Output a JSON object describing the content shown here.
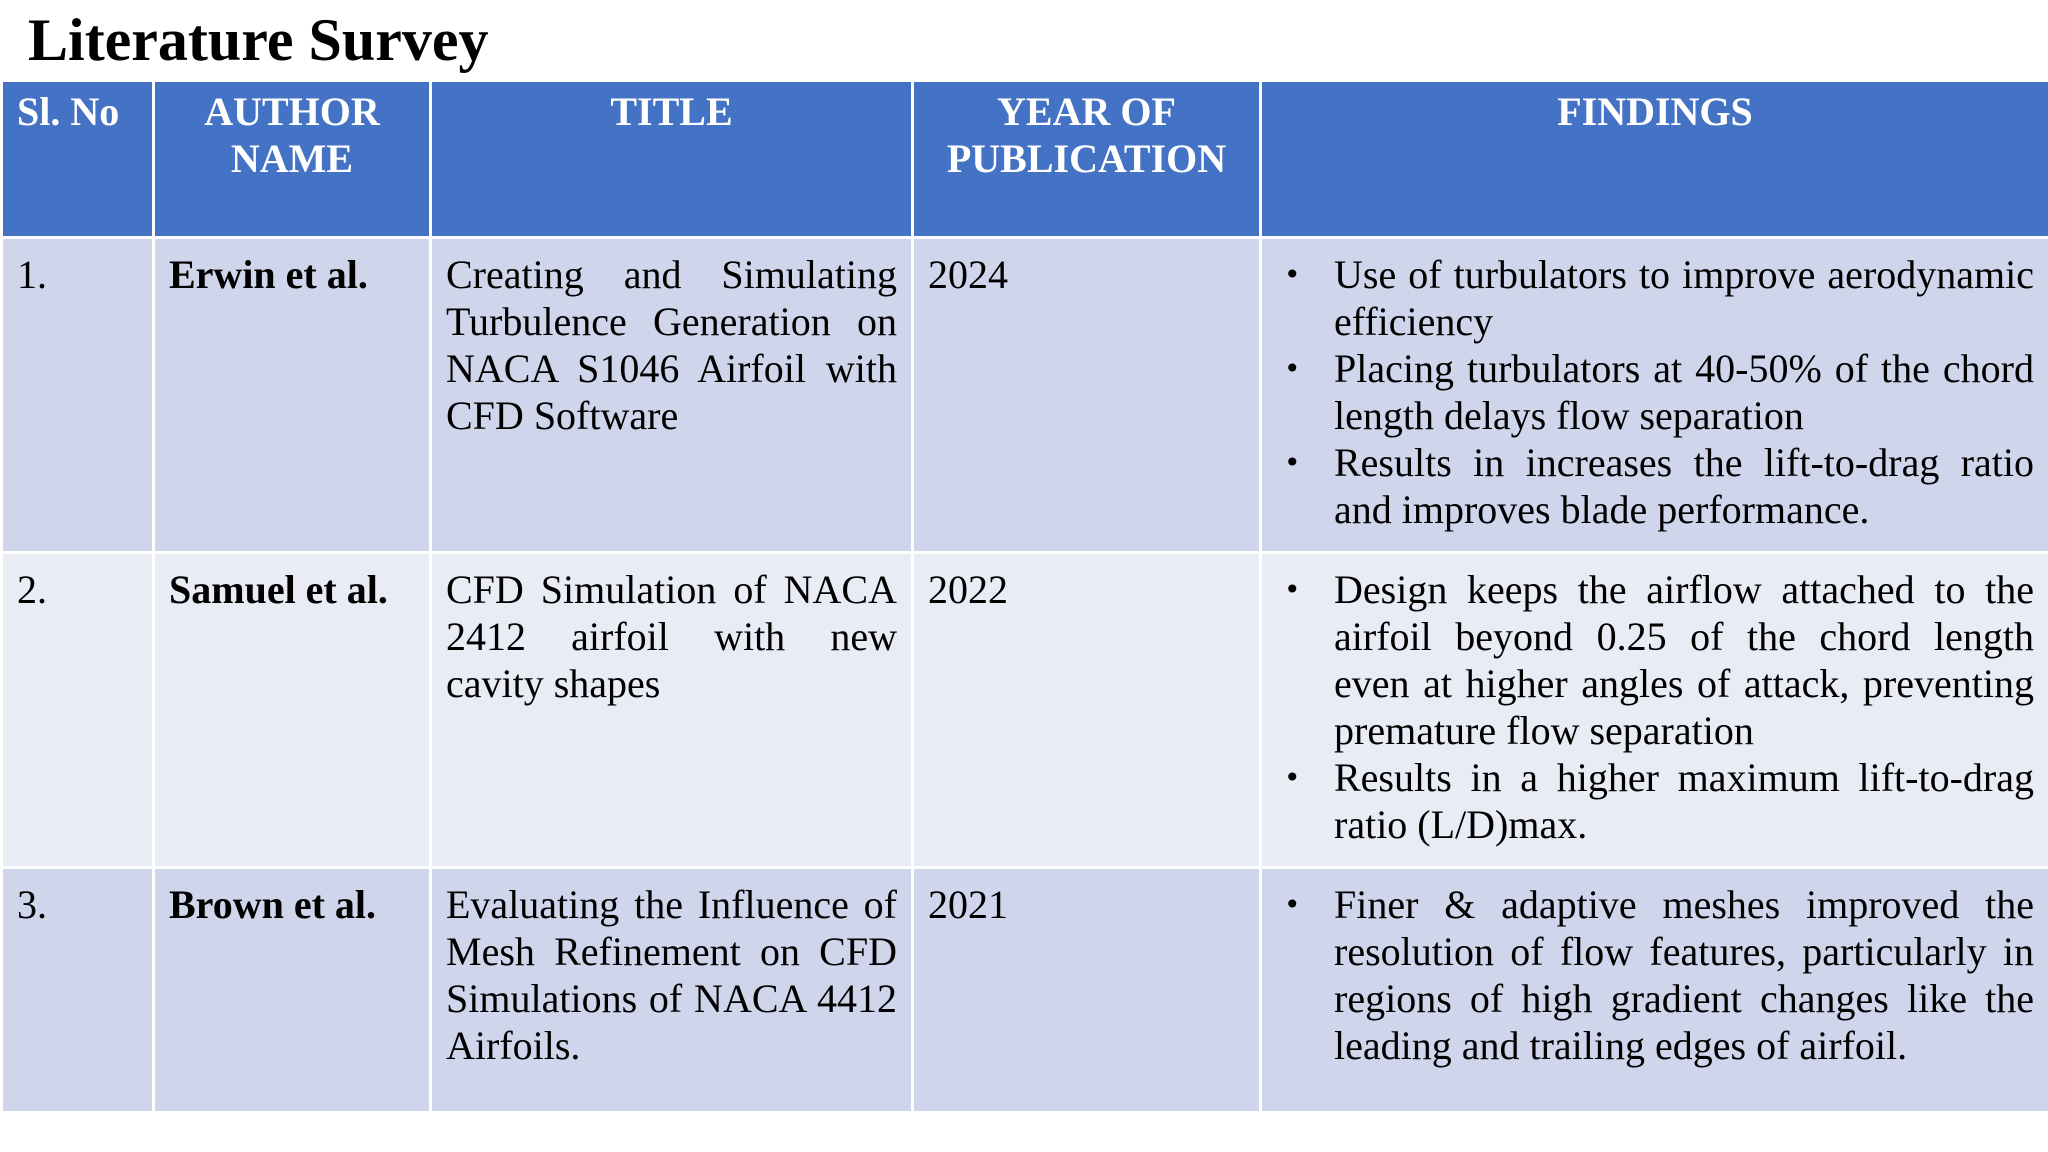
{
  "slide": {
    "title": "Literature Survey"
  },
  "table": {
    "headers": {
      "sl_no": "Sl. No",
      "author": "AUTHOR NAME",
      "title": "TITLE",
      "year": "YEAR OF PUBLICATION",
      "findings": "FINDINGS"
    },
    "rows": [
      {
        "sl_no": "1.",
        "author": "Erwin et al.",
        "title": "Creating and Simulating Turbulence Generation on NACA S1046 Airfoil with CFD Software",
        "year": "2024",
        "findings": [
          "Use of turbulators to improve aerodynamic efficiency",
          "Placing turbulators at 40-50% of the chord length delays flow separation",
          "Results in increases the lift-to-drag ratio and improves blade performance."
        ]
      },
      {
        "sl_no": "2.",
        "author": "Samuel et al.",
        "title": "CFD Simulation of NACA 2412 airfoil with new cavity shapes",
        "year": "2022",
        "findings": [
          "Design keeps the airflow attached to the airfoil beyond 0.25 of the chord length even at higher angles of attack, preventing premature flow separation",
          "Results in a higher maximum lift-to-drag ratio (L/D)max."
        ]
      },
      {
        "sl_no": "3.",
        "author": "Brown et al.",
        "title": "Evaluating the Influence of Mesh Refinement on CFD Simulations of NACA 4412 Airfoils.",
        "year": "2021",
        "findings": [
          "Finer & adaptive meshes improved the resolution of flow features, particularly in regions of high gradient changes like the leading and trailing edges of airfoil."
        ]
      }
    ],
    "bullet_glyph": "•",
    "colors": {
      "header_bg": "#4472c4",
      "row_odd_bg": "#cfd5ea",
      "row_even_bg": "#e9ebf5"
    }
  }
}
